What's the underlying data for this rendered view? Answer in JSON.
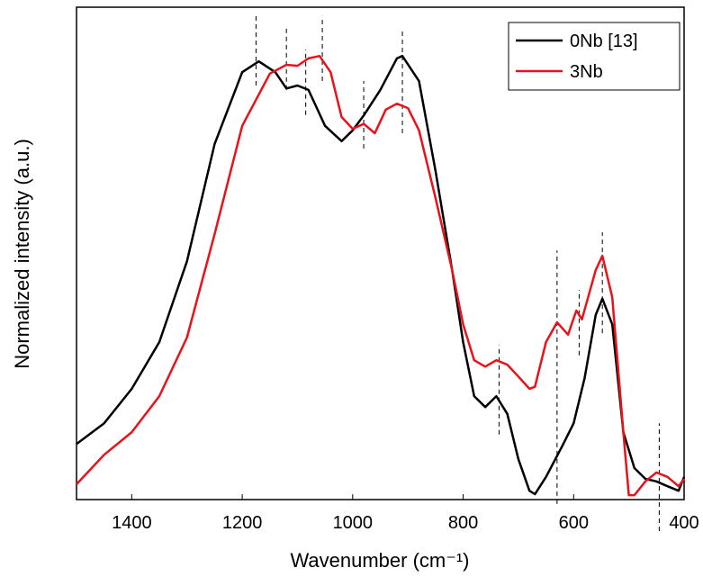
{
  "chart_data": {
    "type": "line",
    "x_label": "Wavenumber (cm⁻¹)",
    "y_label": "Normalized intensity (a.u.)",
    "xlim": [
      1500,
      400
    ],
    "ylim": [
      0,
      1
    ],
    "xticks": [
      1400,
      1200,
      1000,
      800,
      600,
      400
    ],
    "legend": "upper-right",
    "series": [
      {
        "name": "0Nb [13]",
        "color": "#000000",
        "x": [
          1500,
          1450,
          1400,
          1350,
          1300,
          1250,
          1200,
          1170,
          1140,
          1120,
          1100,
          1080,
          1050,
          1020,
          1000,
          980,
          950,
          920,
          910,
          880,
          850,
          820,
          800,
          780,
          760,
          740,
          720,
          700,
          680,
          670,
          650,
          620,
          600,
          580,
          560,
          548,
          530,
          510,
          490,
          470,
          450,
          430,
          410,
          400
        ],
        "values": [
          0.113,
          0.155,
          0.225,
          0.32,
          0.484,
          0.722,
          0.868,
          0.89,
          0.868,
          0.835,
          0.841,
          0.832,
          0.759,
          0.728,
          0.75,
          0.78,
          0.832,
          0.896,
          0.901,
          0.85,
          0.667,
          0.466,
          0.32,
          0.21,
          0.188,
          0.21,
          0.174,
          0.082,
          0.018,
          0.011,
          0.046,
          0.11,
          0.155,
          0.247,
          0.375,
          0.408,
          0.356,
          0.137,
          0.064,
          0.042,
          0.037,
          0.027,
          0.018,
          0.046
        ]
      },
      {
        "name": "3Nb",
        "color": "#e8121a",
        "x": [
          1500,
          1450,
          1400,
          1350,
          1300,
          1250,
          1200,
          1150,
          1120,
          1100,
          1080,
          1060,
          1040,
          1020,
          1000,
          980,
          960,
          940,
          920,
          900,
          880,
          850,
          820,
          800,
          780,
          760,
          740,
          720,
          700,
          680,
          670,
          650,
          630,
          610,
          595,
          585,
          560,
          548,
          530,
          510,
          500,
          490,
          470,
          450,
          430,
          410,
          400
        ],
        "values": [
          0.031,
          0.091,
          0.137,
          0.21,
          0.329,
          0.539,
          0.759,
          0.865,
          0.883,
          0.881,
          0.896,
          0.901,
          0.868,
          0.777,
          0.753,
          0.763,
          0.744,
          0.792,
          0.804,
          0.795,
          0.75,
          0.612,
          0.466,
          0.356,
          0.283,
          0.27,
          0.283,
          0.274,
          0.25,
          0.225,
          0.229,
          0.32,
          0.36,
          0.335,
          0.384,
          0.366,
          0.466,
          0.495,
          0.411,
          0.137,
          0.009,
          0.009,
          0.037,
          0.055,
          0.046,
          0.027,
          0.042
        ]
      }
    ],
    "reference_lines": [
      {
        "x": 1175,
        "y": [
          0.841,
          0.982
        ]
      },
      {
        "x": 1120,
        "y": [
          0.832,
          0.96
        ]
      },
      {
        "x": 1085,
        "y": [
          0.781,
          0.914
        ]
      },
      {
        "x": 1055,
        "y": [
          0.85,
          0.982
        ]
      },
      {
        "x": 980,
        "y": [
          0.713,
          0.85
        ]
      },
      {
        "x": 910,
        "y": [
          0.744,
          0.951
        ]
      },
      {
        "x": 735,
        "y": [
          0.132,
          0.314
        ]
      },
      {
        "x": 630,
        "y": [
          -0.009,
          0.506
        ]
      },
      {
        "x": 590,
        "y": [
          0.293,
          0.426
        ]
      },
      {
        "x": 548,
        "y": [
          0.338,
          0.543
        ]
      },
      {
        "x": 445,
        "y": [
          -0.064,
          0.155
        ]
      }
    ]
  }
}
